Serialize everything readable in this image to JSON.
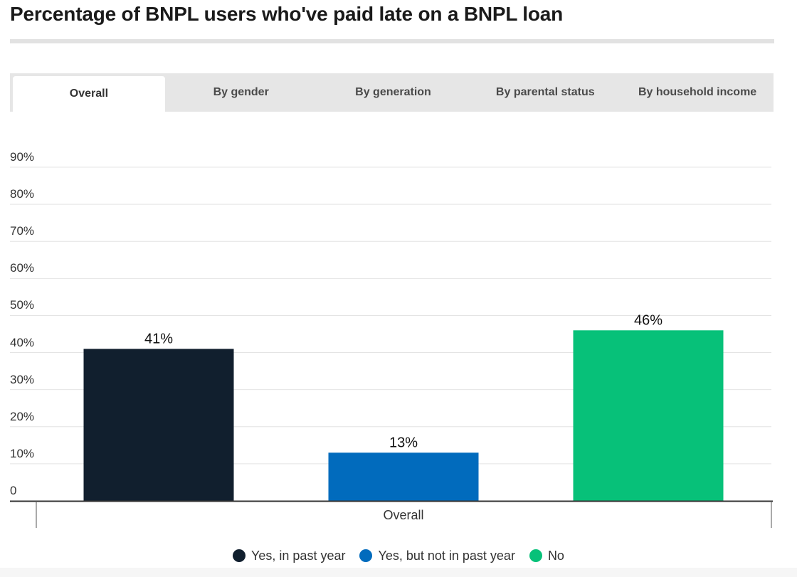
{
  "title": "Percentage of BNPL users who've paid late on a BNPL loan",
  "tabs": [
    {
      "label": "Overall",
      "active": true
    },
    {
      "label": "By gender",
      "active": false
    },
    {
      "label": "By generation",
      "active": false
    },
    {
      "label": "By parental status",
      "active": false
    },
    {
      "label": "By household income",
      "active": false
    }
  ],
  "chart_data": {
    "type": "bar",
    "title": "Percentage of BNPL users who've paid late on a BNPL loan",
    "categories": [
      "Overall"
    ],
    "series": [
      {
        "name": "Yes, in past year",
        "values": [
          41
        ],
        "label": "41%",
        "color": "#111f2e"
      },
      {
        "name": "Yes, but not in past year",
        "values": [
          13
        ],
        "label": "13%",
        "color": "#016bbd"
      },
      {
        "name": "No",
        "values": [
          46
        ],
        "label": "46%",
        "color": "#07c179"
      }
    ],
    "ylim": [
      0,
      90
    ],
    "yticks": [
      "0",
      "10%",
      "20%",
      "30%",
      "40%",
      "50%",
      "60%",
      "70%",
      "80%",
      "90%"
    ],
    "xlabel": "",
    "ylabel": "",
    "grid": true,
    "legend": "bottom-center"
  }
}
